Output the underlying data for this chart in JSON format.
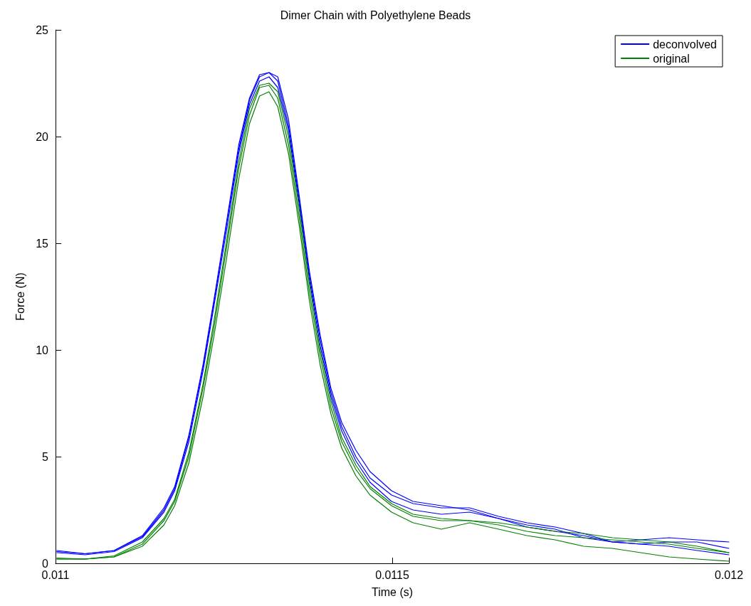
{
  "chart_data": {
    "type": "line",
    "title": "Dimer Chain with Polyethylene Beads",
    "xlabel": "Time (s)",
    "ylabel": "Force (N)",
    "x": [
      0.011002,
      0.011044,
      0.011087,
      0.011129,
      0.011161,
      0.011177,
      0.011198,
      0.011219,
      0.011235,
      0.011254,
      0.011272,
      0.011288,
      0.011303,
      0.011317,
      0.01133,
      0.011346,
      0.011362,
      0.011377,
      0.011393,
      0.011409,
      0.011425,
      0.011446,
      0.011467,
      0.011499,
      0.011531,
      0.011573,
      0.011615,
      0.011658,
      0.0117,
      0.011742,
      0.011784,
      0.011827,
      0.011869,
      0.011911,
      0.011953,
      0.012
    ],
    "series": [
      {
        "name": "deconvolved",
        "color": "#0000ff",
        "values": [
          0.6,
          0.45,
          0.6,
          1.3,
          2.6,
          3.6,
          6.0,
          9.3,
          12.3,
          16.0,
          19.6,
          21.8,
          22.9,
          23.0,
          22.6,
          20.5,
          17.0,
          13.5,
          10.5,
          8.0,
          6.4,
          5.0,
          4.0,
          3.2,
          2.8,
          2.6,
          2.6,
          2.2,
          1.9,
          1.7,
          1.4,
          1.0,
          0.9,
          1.0,
          1.0,
          0.7
        ]
      },
      {
        "color": "#0000ff",
        "values": [
          0.5,
          0.4,
          0.55,
          1.2,
          2.4,
          3.4,
          5.7,
          9.0,
          12.0,
          15.6,
          19.2,
          21.5,
          22.6,
          22.8,
          22.3,
          20.3,
          16.8,
          13.3,
          10.2,
          7.8,
          6.2,
          4.8,
          3.8,
          2.9,
          2.5,
          2.3,
          2.4,
          2.1,
          1.8,
          1.6,
          1.2,
          1.0,
          1.1,
          1.2,
          1.1,
          1.0
        ]
      },
      {
        "color": "#0000ff",
        "values": [
          0.55,
          0.45,
          0.6,
          1.25,
          2.5,
          3.5,
          5.9,
          9.2,
          12.2,
          15.9,
          19.4,
          21.7,
          22.8,
          23.0,
          22.8,
          20.8,
          17.2,
          13.7,
          10.7,
          8.2,
          6.6,
          5.3,
          4.3,
          3.4,
          2.9,
          2.7,
          2.5,
          2.1,
          1.7,
          1.5,
          1.3,
          1.0,
          0.9,
          0.8,
          0.6,
          0.4
        ]
      },
      {
        "name": "original",
        "color": "#008000",
        "values": [
          0.2,
          0.2,
          0.3,
          0.9,
          2.0,
          2.9,
          5.0,
          8.2,
          11.0,
          14.8,
          18.5,
          21.0,
          22.3,
          22.4,
          21.8,
          19.6,
          16.2,
          12.7,
          9.7,
          7.3,
          5.7,
          4.4,
          3.5,
          2.7,
          2.2,
          2.0,
          2.0,
          1.8,
          1.5,
          1.3,
          1.2,
          1.1,
          1.0,
          0.9,
          0.7,
          0.5
        ]
      },
      {
        "color": "#008000",
        "values": [
          0.2,
          0.2,
          0.3,
          0.8,
          1.8,
          2.7,
          4.7,
          7.8,
          10.6,
          14.3,
          18.0,
          20.6,
          21.9,
          22.1,
          21.4,
          19.2,
          15.8,
          12.3,
          9.3,
          7.0,
          5.4,
          4.1,
          3.2,
          2.4,
          1.9,
          1.6,
          1.9,
          1.6,
          1.3,
          1.1,
          0.8,
          0.7,
          0.5,
          0.3,
          0.2,
          0.1
        ]
      },
      {
        "color": "#008000",
        "values": [
          0.25,
          0.2,
          0.35,
          1.0,
          2.1,
          3.0,
          5.2,
          8.4,
          11.3,
          15.1,
          18.8,
          21.3,
          22.4,
          22.5,
          22.1,
          20.0,
          16.6,
          13.1,
          10.0,
          7.6,
          5.9,
          4.6,
          3.6,
          2.8,
          2.3,
          2.1,
          2.0,
          1.9,
          1.7,
          1.5,
          1.4,
          1.2,
          1.1,
          1.0,
          0.8,
          0.5
        ]
      }
    ],
    "xlim": [
      0.011,
      0.012
    ],
    "xticks": [
      0.011,
      0.0115,
      0.012
    ],
    "ylim": [
      0,
      25
    ],
    "yticks": [
      0,
      5,
      10,
      15,
      20,
      25
    ],
    "grid": false,
    "legend": "top right",
    "marker": "none",
    "line_style": "solid"
  }
}
